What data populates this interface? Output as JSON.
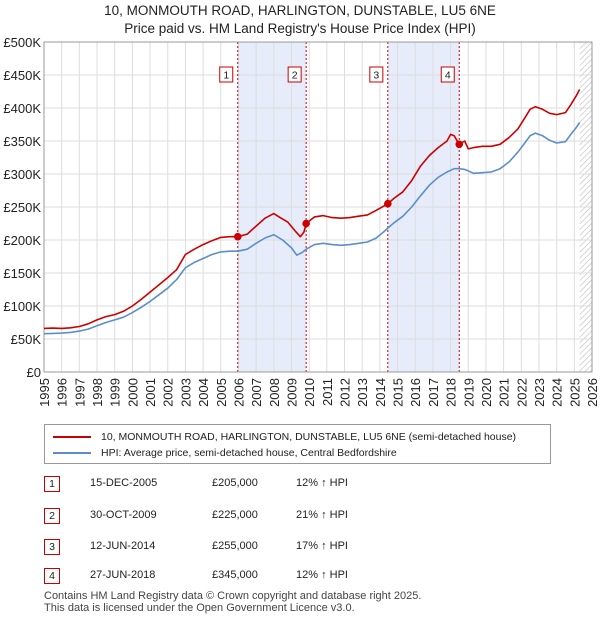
{
  "title_line1": "10, MONMOUTH ROAD, HARLINGTON, DUNSTABLE, LU5 6NE",
  "title_line2": "Price paid vs. HM Land Registry's House Price Index (HPI)",
  "colors": {
    "property": "#cc0000",
    "hpi": "#5b8fc9",
    "shade": "#e6ecfa",
    "grid": "#dddddd"
  },
  "chart_data": {
    "type": "line",
    "xlim": [
      1995,
      2026
    ],
    "ylim": [
      0,
      500000
    ],
    "y_ticks": [
      {
        "value": 0,
        "label": "£0"
      },
      {
        "value": 50000,
        "label": "£50K"
      },
      {
        "value": 100000,
        "label": "£100K"
      },
      {
        "value": 150000,
        "label": "£150K"
      },
      {
        "value": 200000,
        "label": "£200K"
      },
      {
        "value": 250000,
        "label": "£250K"
      },
      {
        "value": 300000,
        "label": "£300K"
      },
      {
        "value": 350000,
        "label": "£350K"
      },
      {
        "value": 400000,
        "label": "£400K"
      },
      {
        "value": 450000,
        "label": "£450K"
      },
      {
        "value": 500000,
        "label": "£500K"
      }
    ],
    "x_ticks": [
      "1995",
      "1996",
      "1997",
      "1998",
      "1999",
      "2000",
      "2001",
      "2002",
      "2003",
      "2004",
      "2005",
      "2006",
      "2007",
      "2008",
      "2009",
      "2010",
      "2011",
      "2012",
      "2013",
      "2014",
      "2015",
      "2016",
      "2017",
      "2018",
      "2019",
      "2020",
      "2021",
      "2022",
      "2023",
      "2024",
      "2025",
      "2026"
    ],
    "shaded_ranges": [
      [
        2005.96,
        2009.83
      ],
      [
        2014.45,
        2018.49
      ]
    ],
    "data_end": 2025.3,
    "series": [
      {
        "name": "10, MONMOUTH ROAD, HARLINGTON, DUNSTABLE, LU5 6NE (semi-detached house)",
        "color": "#cc0000",
        "points": [
          [
            1995.0,
            66000
          ],
          [
            1995.5,
            66500
          ],
          [
            1996.0,
            66000
          ],
          [
            1996.5,
            67000
          ],
          [
            1997.0,
            69000
          ],
          [
            1997.5,
            73000
          ],
          [
            1998.0,
            79000
          ],
          [
            1998.5,
            84000
          ],
          [
            1999.0,
            87000
          ],
          [
            1999.5,
            92000
          ],
          [
            2000.0,
            100000
          ],
          [
            2000.5,
            110000
          ],
          [
            2001.0,
            121000
          ],
          [
            2001.5,
            132000
          ],
          [
            2002.0,
            143000
          ],
          [
            2002.5,
            155000
          ],
          [
            2003.0,
            178000
          ],
          [
            2003.5,
            186000
          ],
          [
            2004.0,
            193000
          ],
          [
            2004.5,
            199000
          ],
          [
            2005.0,
            204000
          ],
          [
            2005.5,
            205000
          ],
          [
            2005.96,
            205000
          ],
          [
            2006.5,
            209000
          ],
          [
            2007.0,
            221000
          ],
          [
            2007.5,
            233000
          ],
          [
            2008.0,
            240000
          ],
          [
            2008.3,
            235000
          ],
          [
            2008.8,
            227000
          ],
          [
            2009.2,
            214000
          ],
          [
            2009.5,
            205000
          ],
          [
            2009.7,
            212000
          ],
          [
            2009.83,
            225000
          ],
          [
            2010.3,
            235000
          ],
          [
            2010.8,
            237000
          ],
          [
            2011.3,
            234000
          ],
          [
            2011.8,
            233000
          ],
          [
            2012.3,
            234000
          ],
          [
            2012.8,
            236000
          ],
          [
            2013.3,
            238000
          ],
          [
            2013.8,
            245000
          ],
          [
            2014.2,
            251000
          ],
          [
            2014.45,
            255000
          ],
          [
            2014.8,
            263000
          ],
          [
            2015.3,
            273000
          ],
          [
            2015.8,
            290000
          ],
          [
            2016.3,
            312000
          ],
          [
            2016.8,
            328000
          ],
          [
            2017.3,
            340000
          ],
          [
            2017.8,
            350000
          ],
          [
            2018.0,
            360000
          ],
          [
            2018.2,
            358000
          ],
          [
            2018.49,
            345000
          ],
          [
            2018.8,
            350000
          ],
          [
            2019.0,
            338000
          ],
          [
            2019.3,
            340000
          ],
          [
            2019.8,
            342000
          ],
          [
            2020.3,
            342000
          ],
          [
            2020.8,
            345000
          ],
          [
            2021.3,
            355000
          ],
          [
            2021.8,
            368000
          ],
          [
            2022.2,
            385000
          ],
          [
            2022.5,
            398000
          ],
          [
            2022.8,
            402000
          ],
          [
            2023.2,
            398000
          ],
          [
            2023.6,
            392000
          ],
          [
            2024.0,
            390000
          ],
          [
            2024.5,
            393000
          ],
          [
            2024.8,
            405000
          ],
          [
            2025.1,
            418000
          ],
          [
            2025.3,
            428000
          ]
        ]
      },
      {
        "name": "HPI: Average price, semi-detached house, Central Bedfordshire",
        "color": "#5b8fc9",
        "points": [
          [
            1995.0,
            58000
          ],
          [
            1995.5,
            58500
          ],
          [
            1996.0,
            59000
          ],
          [
            1996.5,
            60000
          ],
          [
            1997.0,
            62000
          ],
          [
            1997.5,
            65000
          ],
          [
            1998.0,
            70000
          ],
          [
            1998.5,
            75000
          ],
          [
            1999.0,
            79000
          ],
          [
            1999.5,
            83000
          ],
          [
            2000.0,
            90000
          ],
          [
            2000.5,
            98000
          ],
          [
            2001.0,
            107000
          ],
          [
            2001.5,
            117000
          ],
          [
            2002.0,
            127000
          ],
          [
            2002.5,
            140000
          ],
          [
            2003.0,
            158000
          ],
          [
            2003.5,
            166000
          ],
          [
            2004.0,
            172000
          ],
          [
            2004.5,
            178000
          ],
          [
            2005.0,
            182000
          ],
          [
            2005.5,
            183000
          ],
          [
            2005.96,
            183000
          ],
          [
            2006.5,
            186000
          ],
          [
            2007.0,
            195000
          ],
          [
            2007.5,
            203000
          ],
          [
            2008.0,
            208000
          ],
          [
            2008.5,
            200000
          ],
          [
            2009.0,
            188000
          ],
          [
            2009.3,
            177000
          ],
          [
            2009.6,
            181000
          ],
          [
            2009.83,
            186000
          ],
          [
            2010.3,
            193000
          ],
          [
            2010.8,
            195000
          ],
          [
            2011.3,
            193000
          ],
          [
            2011.8,
            192000
          ],
          [
            2012.3,
            193000
          ],
          [
            2012.8,
            195000
          ],
          [
            2013.3,
            197000
          ],
          [
            2013.8,
            203000
          ],
          [
            2014.2,
            212000
          ],
          [
            2014.45,
            218000
          ],
          [
            2014.8,
            226000
          ],
          [
            2015.3,
            236000
          ],
          [
            2015.8,
            250000
          ],
          [
            2016.3,
            267000
          ],
          [
            2016.8,
            283000
          ],
          [
            2017.3,
            295000
          ],
          [
            2017.8,
            303000
          ],
          [
            2018.2,
            308000
          ],
          [
            2018.49,
            308000
          ],
          [
            2018.8,
            307000
          ],
          [
            2019.3,
            301000
          ],
          [
            2019.8,
            302000
          ],
          [
            2020.3,
            303000
          ],
          [
            2020.8,
            308000
          ],
          [
            2021.3,
            318000
          ],
          [
            2021.8,
            333000
          ],
          [
            2022.2,
            347000
          ],
          [
            2022.5,
            358000
          ],
          [
            2022.8,
            362000
          ],
          [
            2023.2,
            358000
          ],
          [
            2023.6,
            351000
          ],
          [
            2024.0,
            347000
          ],
          [
            2024.5,
            349000
          ],
          [
            2024.8,
            360000
          ],
          [
            2025.1,
            370000
          ],
          [
            2025.3,
            378000
          ]
        ]
      }
    ],
    "sales": [
      {
        "id": "1",
        "x": 2005.96,
        "price": 205000
      },
      {
        "id": "2",
        "x": 2009.83,
        "price": 225000
      },
      {
        "id": "3",
        "x": 2014.45,
        "price": 255000
      },
      {
        "id": "4",
        "x": 2018.49,
        "price": 345000
      }
    ]
  },
  "legend": {
    "property_label": "10, MONMOUTH ROAD, HARLINGTON, DUNSTABLE, LU5 6NE (semi-detached house)",
    "hpi_label": "HPI: Average price, semi-detached house, Central Bedfordshire"
  },
  "transactions": [
    {
      "num": "1",
      "date": "15-DEC-2005",
      "price": "£205,000",
      "hpi": "12% ↑ HPI"
    },
    {
      "num": "2",
      "date": "30-OCT-2009",
      "price": "£225,000",
      "hpi": "21% ↑ HPI"
    },
    {
      "num": "3",
      "date": "12-JUN-2014",
      "price": "£255,000",
      "hpi": "17% ↑ HPI"
    },
    {
      "num": "4",
      "date": "27-JUN-2018",
      "price": "£345,000",
      "hpi": "12% ↑ HPI"
    }
  ],
  "footer": {
    "line1": "Contains HM Land Registry data © Crown copyright and database right 2025.",
    "line2": "This data is licensed under the Open Government Licence v3.0."
  }
}
